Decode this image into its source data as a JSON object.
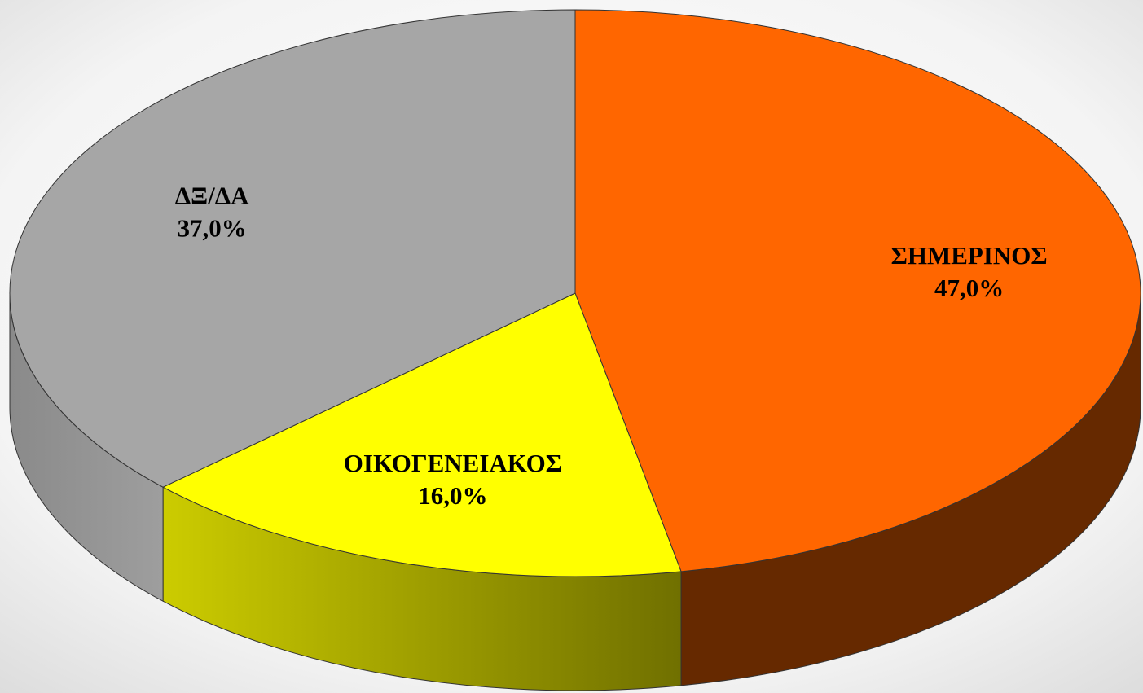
{
  "chart_data": {
    "type": "pie",
    "categories": [
      "ΣΗΜΕΡΙΝΟΣ",
      "ΟΙΚΟΓΕΝΕΙΑΚΟΣ",
      "ΔΞ/ΔΑ"
    ],
    "values": [
      47,
      16,
      37
    ],
    "value_labels": [
      "47,0%",
      "16,0%",
      "37,0%"
    ],
    "colors": [
      "#ff6600",
      "#ffff00",
      "#a6a6a6"
    ]
  }
}
